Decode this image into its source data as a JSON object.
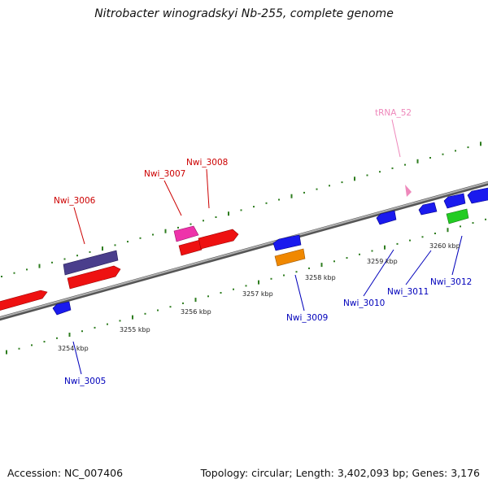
{
  "title": "Nitrobacter winogradskyi Nb-255, complete genome",
  "footer": {
    "accession": "Accession: NC_007406",
    "summary": "Topology: circular; Length: 3,402,093 bp; Genes: 3,176"
  },
  "colors": {
    "backbone": "#8c8c8c",
    "tick": "#2e7d1f",
    "forward_label": "#cc0000",
    "reverse_label": "#0000bb",
    "trna_label": "#ee88bb"
  },
  "kbp_labels": [
    "3254 kbp",
    "3255 kbp",
    "3256 kbp",
    "3257 kbp",
    "3258 kbp",
    "3259 kbp",
    "3260 kbp"
  ],
  "genes": [
    {
      "name": "Nwi_3005",
      "strand": "reverse"
    },
    {
      "name": "Nwi_3006",
      "strand": "forward"
    },
    {
      "name": "Nwi_3007",
      "strand": "forward"
    },
    {
      "name": "Nwi_3008",
      "strand": "forward"
    },
    {
      "name": "Nwi_3009",
      "strand": "reverse"
    },
    {
      "name": "Nwi_3010",
      "strand": "reverse"
    },
    {
      "name": "Nwi_3011",
      "strand": "reverse"
    },
    {
      "name": "Nwi_3012",
      "strand": "reverse"
    },
    {
      "name": "tRNA_52",
      "strand": "forward"
    }
  ]
}
